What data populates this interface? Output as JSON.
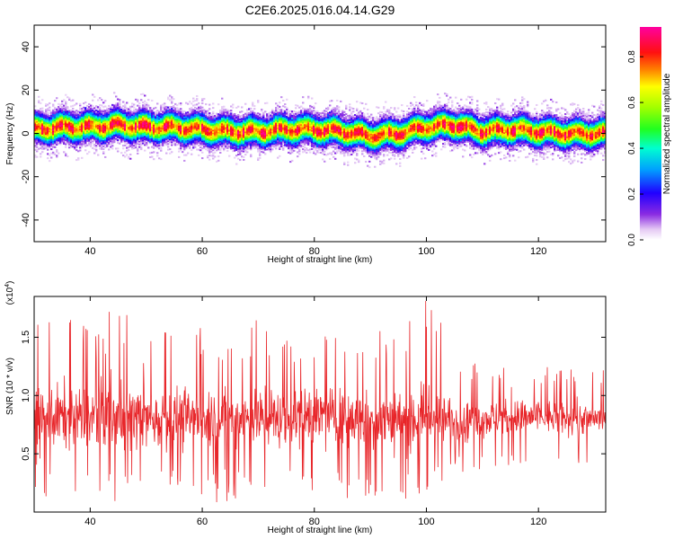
{
  "title": "C2E6.2025.016.04.14.G29",
  "chart_data": [
    {
      "type": "heatmap",
      "xlabel": "Height of straight line (km)",
      "ylabel": "Frequency (Hz)",
      "xlim": [
        30,
        132
      ],
      "ylim": [
        -50,
        50
      ],
      "xticks": [
        40,
        60,
        80,
        100,
        120
      ],
      "yticks": [
        -40,
        -20,
        0,
        20,
        40
      ],
      "colorbar": {
        "label": "Normalized spectral amplitude",
        "range": [
          0,
          0.93
        ],
        "ticks": [
          0.0,
          0.2,
          0.4,
          0.6,
          0.8
        ],
        "colormap": "rainbow (white → purple → blue → cyan → green → yellow → red → magenta)"
      },
      "ridge": {
        "description": "Signal band centred near 0–4 Hz, roughly ±8 Hz wide, wavy along height",
        "x": [
          30,
          35,
          40,
          45,
          50,
          55,
          60,
          65,
          70,
          75,
          80,
          85,
          90,
          95,
          100,
          105,
          110,
          115,
          120,
          125,
          132
        ],
        "center_hz": [
          2,
          3,
          3,
          4,
          3,
          3,
          2,
          1,
          1,
          2,
          2,
          1,
          -1,
          0,
          3,
          4,
          1,
          2,
          1,
          0,
          0
        ]
      },
      "grid": false
    },
    {
      "type": "line",
      "xlabel": "Height of straight line (km)",
      "ylabel": "SNR (10 * v/v)",
      "y_multiplier": "(x10^4)",
      "xlim": [
        30,
        132
      ],
      "ylim": [
        0,
        18500
      ],
      "xticks": [
        40,
        60,
        80,
        100,
        120
      ],
      "yticks": [
        5000,
        10000,
        15000
      ],
      "ytick_labels": [
        "0.5",
        "1.0",
        "1.5"
      ],
      "color": "#e8262a",
      "series_summary": {
        "description": "Dense noisy SNR trace; mean ≈ 8000, large spikes up to ≈ 18000 for x < 105 km, tighter band 5000–11000 for x > 105 km",
        "x": [
          30,
          35,
          40,
          45,
          50,
          55,
          60,
          65,
          70,
          75,
          80,
          85,
          90,
          95,
          100,
          105,
          110,
          115,
          120,
          125,
          132
        ],
        "mean": [
          8000,
          8200,
          8000,
          8300,
          8100,
          8000,
          8200,
          8000,
          8100,
          8000,
          8300,
          8000,
          8100,
          8000,
          8200,
          7800,
          8000,
          8100,
          8200,
          8000,
          8100
        ],
        "max": [
          17000,
          17200,
          16000,
          17900,
          15500,
          17600,
          16400,
          15800,
          16900,
          15200,
          16300,
          15000,
          15600,
          16000,
          18300,
          14800,
          12500,
          12400,
          12900,
          12200,
          12600
        ],
        "min": [
          900,
          700,
          500,
          800,
          400,
          1200,
          600,
          900,
          1500,
          700,
          900,
          800,
          1400,
          900,
          1300,
          2700,
          3500,
          4000,
          3600,
          4100,
          3900
        ]
      }
    }
  ]
}
